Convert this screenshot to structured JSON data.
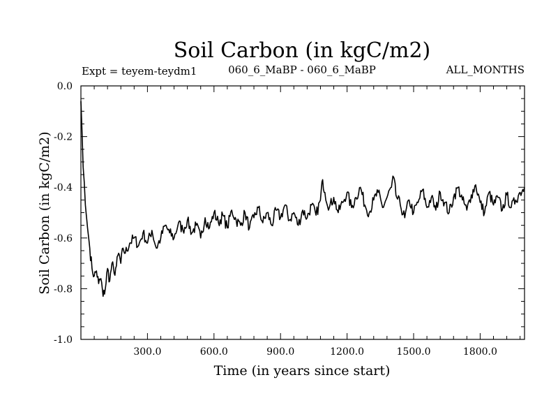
{
  "chart_data": {
    "type": "line",
    "title": "Soil Carbon (in kgC/m2)",
    "subtitle_left": "Expt = teyem-teydm1",
    "subtitle_center": "060_6_MaBP - 060_6_MaBP",
    "subtitle_right": "ALL_MONTHS",
    "xlabel": "Time (in years since start)",
    "ylabel": "Soil Carbon (in kgC/m2)",
    "xlim": [
      0,
      2000
    ],
    "ylim": [
      -1.0,
      0.0
    ],
    "x_ticks": [
      300,
      600,
      900,
      1200,
      1500,
      1800
    ],
    "x_tick_labels": [
      "300.0",
      "600.0",
      "900.0",
      "1200.0",
      "1500.0",
      "1800.0"
    ],
    "y_ticks": [
      0.0,
      -0.2,
      -0.4,
      -0.6,
      -0.8,
      -1.0
    ],
    "y_tick_labels": [
      "0.0",
      "-0.2",
      "-0.4",
      "-0.6",
      "-0.8",
      "-1.0"
    ],
    "grid": false,
    "series": [
      {
        "name": "Soil Carbon",
        "color": "#000000",
        "x": [
          0,
          5,
          10,
          15,
          20,
          30,
          40,
          50,
          60,
          70,
          80,
          90,
          100,
          110,
          120,
          130,
          140,
          150,
          160,
          170,
          180,
          190,
          200,
          220,
          240,
          260,
          280,
          300,
          320,
          340,
          360,
          380,
          400,
          420,
          440,
          460,
          480,
          500,
          520,
          540,
          560,
          580,
          600,
          620,
          640,
          660,
          680,
          700,
          720,
          740,
          760,
          780,
          800,
          820,
          840,
          860,
          880,
          900,
          920,
          940,
          960,
          980,
          1000,
          1020,
          1040,
          1060,
          1080,
          1090,
          1100,
          1120,
          1140,
          1160,
          1180,
          1200,
          1220,
          1240,
          1260,
          1280,
          1300,
          1320,
          1340,
          1360,
          1380,
          1400,
          1410,
          1420,
          1440,
          1460,
          1480,
          1500,
          1520,
          1540,
          1560,
          1580,
          1600,
          1620,
          1640,
          1660,
          1680,
          1700,
          1720,
          1740,
          1760,
          1780,
          1800,
          1820,
          1840,
          1860,
          1880,
          1900,
          1920,
          1940,
          1960,
          1980,
          2000
        ],
        "y": [
          -0.06,
          -0.18,
          -0.32,
          -0.38,
          -0.47,
          -0.56,
          -0.64,
          -0.72,
          -0.75,
          -0.73,
          -0.78,
          -0.76,
          -0.83,
          -0.8,
          -0.72,
          -0.77,
          -0.7,
          -0.74,
          -0.71,
          -0.66,
          -0.7,
          -0.64,
          -0.66,
          -0.62,
          -0.6,
          -0.63,
          -0.58,
          -0.62,
          -0.57,
          -0.64,
          -0.6,
          -0.55,
          -0.58,
          -0.6,
          -0.54,
          -0.57,
          -0.53,
          -0.58,
          -0.55,
          -0.6,
          -0.52,
          -0.56,
          -0.5,
          -0.54,
          -0.51,
          -0.56,
          -0.49,
          -0.53,
          -0.55,
          -0.5,
          -0.56,
          -0.52,
          -0.48,
          -0.54,
          -0.5,
          -0.55,
          -0.49,
          -0.52,
          -0.47,
          -0.53,
          -0.5,
          -0.55,
          -0.49,
          -0.52,
          -0.47,
          -0.51,
          -0.45,
          -0.37,
          -0.42,
          -0.48,
          -0.44,
          -0.5,
          -0.46,
          -0.42,
          -0.48,
          -0.44,
          -0.4,
          -0.47,
          -0.5,
          -0.45,
          -0.42,
          -0.48,
          -0.44,
          -0.4,
          -0.36,
          -0.43,
          -0.47,
          -0.52,
          -0.45,
          -0.5,
          -0.46,
          -0.41,
          -0.48,
          -0.44,
          -0.49,
          -0.42,
          -0.46,
          -0.5,
          -0.44,
          -0.4,
          -0.45,
          -0.49,
          -0.43,
          -0.39,
          -0.46,
          -0.5,
          -0.42,
          -0.47,
          -0.44,
          -0.49,
          -0.43,
          -0.48,
          -0.45,
          -0.42,
          -0.4
        ]
      }
    ]
  }
}
